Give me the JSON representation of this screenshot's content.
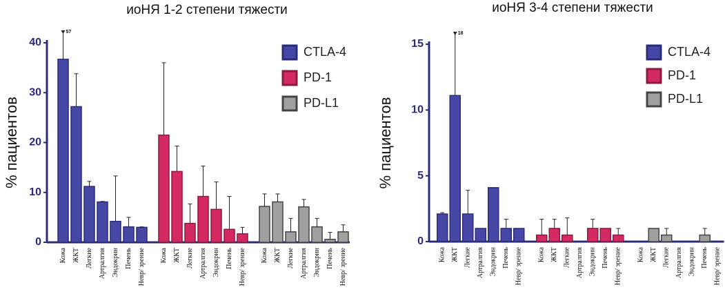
{
  "chart_data": [
    {
      "type": "bar",
      "title": "иоНЯ 1-2 степени тяжести",
      "y_label": "% пациентов",
      "categories": [
        "Кожа",
        "ЖКТ",
        "Легкие",
        "Артралгия",
        "Эндокрин",
        "Печень",
        "Невр/ зрение"
      ],
      "series": [
        {
          "name": "CTLA-4",
          "color": "#4747a6",
          "edge": "#2b2b7a",
          "values": [
            36.7,
            27.2,
            11.2,
            8.1,
            4.2,
            3.1,
            3.0
          ],
          "error_upper": [
            57,
            33.8,
            12.2,
            8.2,
            13.3,
            5.0,
            3.1
          ]
        },
        {
          "name": "PD-1",
          "color": "#d42a64",
          "edge": "#8a1a3e",
          "values": [
            21.5,
            14.2,
            3.8,
            9.2,
            6.6,
            2.6,
            1.7
          ],
          "error_upper": [
            36,
            19.3,
            7.7,
            15.3,
            12.1,
            9.2,
            3.0
          ]
        },
        {
          "name": "PD-L1",
          "color": "#a0a0a0",
          "edge": "#444444",
          "values": [
            7.2,
            8.1,
            2.1,
            7.1,
            3.1,
            0.6,
            2.1
          ],
          "error_upper": [
            9.7,
            9.7,
            4.8,
            8.6,
            4.8,
            2.0,
            3.5
          ]
        }
      ],
      "ylim": [
        0,
        40
      ],
      "yticks": [
        0,
        10,
        20,
        30,
        40
      ],
      "legend": "upper right"
    },
    {
      "type": "bar",
      "title": "иоНЯ 3-4 степени тяжести",
      "y_label": "% пациентов",
      "categories": [
        "Кожа",
        "ЖКТ",
        "Легкие",
        "Артралгия",
        "Эндокрин",
        "Печень",
        "Невр/ зрение"
      ],
      "series": [
        {
          "name": "CTLA-4",
          "color": "#4747a6",
          "edge": "#2b2b7a",
          "values": [
            2.1,
            11.1,
            2.1,
            1.0,
            4.1,
            1.0,
            1.0
          ],
          "error_upper": [
            2.2,
            18,
            3.9,
            1.0,
            4.1,
            1.7,
            1.0
          ]
        },
        {
          "name": "PD-1",
          "color": "#d42a64",
          "edge": "#8a1a3e",
          "values": [
            0.5,
            1.0,
            0.5,
            0,
            1.0,
            1.0,
            0.5
          ],
          "error_upper": [
            1.7,
            1.7,
            1.8,
            0,
            1.7,
            1.0,
            1.0
          ]
        },
        {
          "name": "PD-L1",
          "color": "#a0a0a0",
          "edge": "#444444",
          "values": [
            0,
            1.0,
            0.5,
            0,
            0,
            0.5,
            0
          ],
          "error_upper": [
            0,
            1.0,
            1.0,
            0,
            0,
            1.0,
            0
          ]
        }
      ],
      "ylim": [
        0,
        15
      ],
      "yticks": [
        0,
        5,
        10,
        15
      ],
      "legend": "upper right"
    }
  ]
}
